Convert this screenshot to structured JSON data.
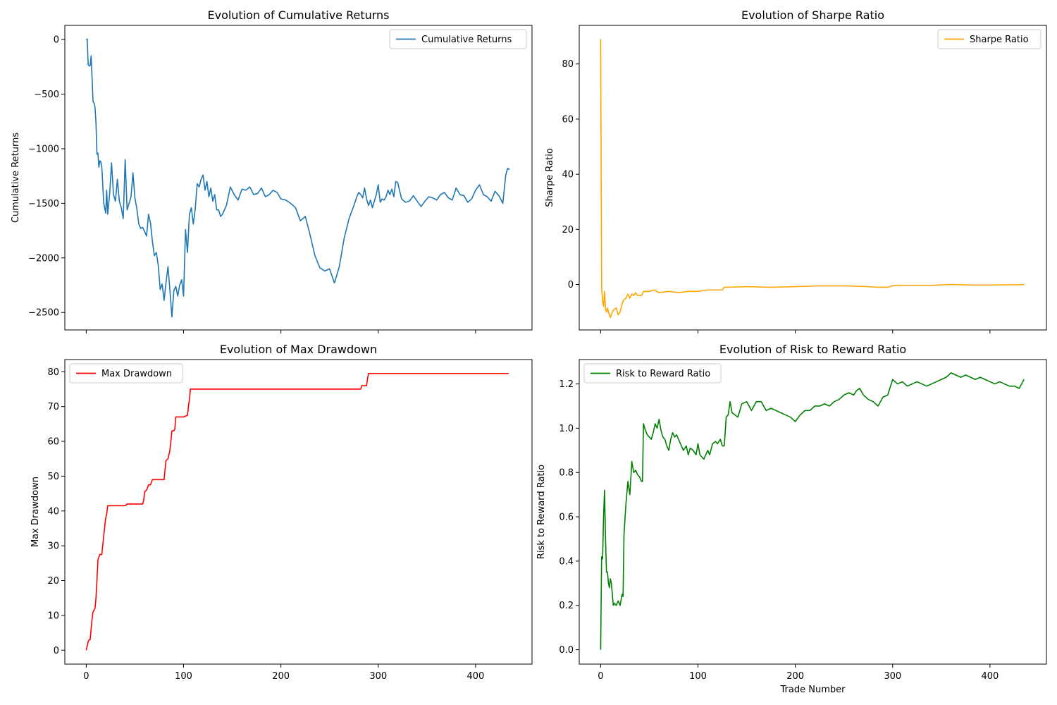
{
  "figure": {
    "background": "#ffffff"
  },
  "chart_data": [
    {
      "id": "cumulative-returns",
      "type": "line",
      "title": "Evolution of Cumulative Returns",
      "xlabel": "",
      "ylabel": "Cumulative Returns",
      "xlim": [
        -22,
        458
      ],
      "ylim": [
        -2660,
        130
      ],
      "xticks": [
        0,
        100,
        200,
        300,
        400
      ],
      "show_xtick_labels": false,
      "yticks": [
        0,
        -500,
        -1000,
        -1500,
        -2000,
        -2500
      ],
      "ytick_labels": [
        "0",
        "−500",
        "−1000",
        "−1500",
        "−2000",
        "−2500"
      ],
      "grid": false,
      "legend": "upper right",
      "series": [
        {
          "name": "Cumulative Returns",
          "color": "#1f77b4",
          "x": [
            0,
            1,
            2,
            3,
            4,
            5,
            6,
            7,
            8,
            9,
            10,
            11,
            12,
            13,
            14,
            15,
            16,
            18,
            20,
            21,
            22,
            24,
            26,
            28,
            30,
            32,
            34,
            36,
            38,
            40,
            42,
            44,
            46,
            48,
            50,
            52,
            54,
            56,
            58,
            60,
            62,
            64,
            66,
            68,
            70,
            72,
            74,
            76,
            78,
            80,
            82,
            84,
            86,
            88,
            90,
            92,
            94,
            96,
            98,
            100,
            102,
            104,
            106,
            108,
            110,
            112,
            114,
            116,
            118,
            120,
            122,
            124,
            126,
            128,
            130,
            132,
            134,
            136,
            138,
            140,
            144,
            148,
            152,
            156,
            160,
            164,
            168,
            172,
            176,
            180,
            184,
            188,
            192,
            196,
            200,
            205,
            210,
            215,
            220,
            225,
            230,
            235,
            240,
            245,
            250,
            255,
            260,
            265,
            270,
            275,
            278,
            280,
            282,
            284,
            286,
            288,
            290,
            292,
            294,
            296,
            298,
            300,
            302,
            304,
            306,
            308,
            310,
            312,
            314,
            316,
            318,
            320,
            324,
            328,
            332,
            336,
            340,
            344,
            348,
            352,
            356,
            360,
            364,
            368,
            372,
            376,
            380,
            384,
            388,
            392,
            396,
            400,
            404,
            408,
            412,
            416,
            420,
            424,
            428,
            431,
            433,
            435
          ],
          "y": [
            0,
            5,
            -230,
            -240,
            -240,
            -150,
            -350,
            -570,
            -580,
            -620,
            -760,
            -1050,
            -1040,
            -1170,
            -1110,
            -1120,
            -1170,
            -1500,
            -1590,
            -1380,
            -1600,
            -1420,
            -1130,
            -1420,
            -1480,
            -1280,
            -1480,
            -1540,
            -1640,
            -1100,
            -1560,
            -1500,
            -1440,
            -1220,
            -1450,
            -1550,
            -1690,
            -1730,
            -1720,
            -1760,
            -1800,
            -1600,
            -1680,
            -1850,
            -1980,
            -1950,
            -2070,
            -2290,
            -2240,
            -2390,
            -2220,
            -2080,
            -2300,
            -2540,
            -2300,
            -2260,
            -2350,
            -2250,
            -2200,
            -2350,
            -1740,
            -1950,
            -1600,
            -1540,
            -1690,
            -1550,
            -1320,
            -1350,
            -1280,
            -1240,
            -1380,
            -1300,
            -1440,
            -1360,
            -1480,
            -1420,
            -1560,
            -1560,
            -1620,
            -1600,
            -1520,
            -1350,
            -1420,
            -1470,
            -1370,
            -1380,
            -1350,
            -1420,
            -1410,
            -1360,
            -1440,
            -1420,
            -1380,
            -1400,
            -1460,
            -1470,
            -1500,
            -1540,
            -1660,
            -1620,
            -1790,
            -1980,
            -2090,
            -2120,
            -2100,
            -2230,
            -2080,
            -1820,
            -1640,
            -1520,
            -1440,
            -1400,
            -1420,
            -1450,
            -1360,
            -1460,
            -1520,
            -1470,
            -1540,
            -1480,
            -1420,
            -1330,
            -1490,
            -1460,
            -1470,
            -1440,
            -1380,
            -1420,
            -1370,
            -1440,
            -1300,
            -1310,
            -1460,
            -1490,
            -1480,
            -1430,
            -1480,
            -1530,
            -1480,
            -1440,
            -1450,
            -1470,
            -1420,
            -1400,
            -1450,
            -1470,
            -1360,
            -1420,
            -1430,
            -1490,
            -1460,
            -1380,
            -1330,
            -1420,
            -1440,
            -1480,
            -1390,
            -1430,
            -1500,
            -1240,
            -1180,
            -1190
          ]
        }
      ]
    },
    {
      "id": "sharpe-ratio",
      "type": "line",
      "title": "Evolution of Sharpe Ratio",
      "xlabel": "",
      "ylabel": "Sharpe Ratio",
      "xlim": [
        -22,
        458
      ],
      "ylim": [
        -16.5,
        94
      ],
      "xticks": [
        0,
        100,
        200,
        300,
        400
      ],
      "show_xtick_labels": false,
      "yticks": [
        0,
        20,
        40,
        60,
        80
      ],
      "ytick_labels": [
        "0",
        "20",
        "40",
        "60",
        "80"
      ],
      "grid": false,
      "legend": "upper right",
      "series": [
        {
          "name": "Sharpe Ratio",
          "color": "#ffa500",
          "x": [
            0,
            1,
            2,
            3,
            4,
            5,
            6,
            7,
            8,
            10,
            12,
            14,
            16,
            18,
            20,
            22,
            24,
            26,
            28,
            30,
            32,
            34,
            36,
            38,
            40,
            42,
            44,
            46,
            50,
            55,
            60,
            70,
            80,
            90,
            100,
            110,
            120,
            125,
            127,
            130,
            150,
            175,
            200,
            225,
            250,
            275,
            285,
            295,
            300,
            305,
            320,
            340,
            360,
            380,
            400,
            420,
            430,
            435
          ],
          "y": [
            89,
            -1,
            -6,
            -8,
            -2.5,
            -9,
            -10,
            -8.5,
            -10,
            -12,
            -10,
            -9,
            -8.5,
            -11,
            -10,
            -7,
            -5.5,
            -5,
            -3.5,
            -5,
            -3.5,
            -4,
            -3,
            -4,
            -4,
            -4,
            -2.5,
            -2.5,
            -2.5,
            -2,
            -3,
            -2.5,
            -3,
            -2.5,
            -2.5,
            -2,
            -2,
            -2,
            -1,
            -1,
            -0.8,
            -1,
            -0.8,
            -0.5,
            -0.5,
            -0.8,
            -1,
            -1,
            -0.5,
            -0.3,
            -0.3,
            -0.3,
            0,
            -0.2,
            -0.2,
            -0.1,
            -0.1,
            0
          ]
        }
      ]
    },
    {
      "id": "max-drawdown",
      "type": "line",
      "title": "Evolution of Max Drawdown",
      "xlabel": "",
      "ylabel": "Max Drawdown",
      "xlim": [
        -22,
        458
      ],
      "ylim": [
        -4,
        83.5
      ],
      "xticks": [
        0,
        100,
        200,
        300,
        400
      ],
      "show_xtick_labels": true,
      "xtick_labels": [
        "0",
        "100",
        "200",
        "300",
        "400"
      ],
      "yticks": [
        0,
        10,
        20,
        30,
        40,
        50,
        60,
        70,
        80
      ],
      "ytick_labels": [
        "0",
        "10",
        "20",
        "30",
        "40",
        "50",
        "60",
        "70",
        "80"
      ],
      "grid": false,
      "legend": "upper left",
      "series": [
        {
          "name": "Max Drawdown",
          "color": "#ff0000",
          "x": [
            0,
            2,
            3,
            4,
            6,
            7,
            8,
            9,
            10,
            11,
            12,
            14,
            16,
            18,
            20,
            21,
            22,
            23,
            40,
            42,
            58,
            59,
            60,
            62,
            64,
            66,
            68,
            80,
            81,
            82,
            84,
            86,
            88,
            90,
            91,
            92,
            98,
            100,
            104,
            105,
            106,
            107,
            282,
            283,
            288,
            289,
            290,
            434
          ],
          "y": [
            0,
            2.5,
            3,
            3,
            9,
            11,
            11.5,
            12,
            15,
            20,
            26,
            27.5,
            27.5,
            33,
            38,
            39,
            41.5,
            41.5,
            41.5,
            42,
            42,
            43,
            45.5,
            46,
            47.5,
            47.5,
            49,
            49,
            52,
            54.5,
            55,
            57.5,
            63,
            63,
            63.5,
            67,
            67,
            67,
            67.5,
            70,
            72,
            75,
            75,
            76,
            76,
            78,
            79.5,
            79.5
          ]
        }
      ]
    },
    {
      "id": "risk-to-reward-ratio",
      "type": "line",
      "title": "Evolution of Risk to Reward Ratio",
      "xlabel": "Trade Number",
      "ylabel": "Risk to Reward Ratio",
      "xlim": [
        -22,
        458
      ],
      "ylim": [
        -0.065,
        1.31
      ],
      "xticks": [
        0,
        100,
        200,
        300,
        400
      ],
      "show_xtick_labels": true,
      "xtick_labels": [
        "0",
        "100",
        "200",
        "300",
        "400"
      ],
      "yticks": [
        0.0,
        0.2,
        0.4,
        0.6,
        0.8,
        1.0,
        1.2
      ],
      "ytick_labels": [
        "0.0",
        "0.2",
        "0.4",
        "0.6",
        "0.8",
        "1.0",
        "1.2"
      ],
      "grid": false,
      "legend": "upper left",
      "series": [
        {
          "name": "Risk to Reward Ratio",
          "color": "#008000",
          "x": [
            0,
            1,
            2,
            3,
            4,
            5,
            6,
            7,
            8,
            9,
            10,
            11,
            12,
            13,
            14,
            16,
            18,
            20,
            22,
            23,
            24,
            26,
            28,
            30,
            32,
            34,
            36,
            38,
            40,
            42,
            43,
            44,
            46,
            48,
            50,
            52,
            54,
            56,
            58,
            60,
            62,
            64,
            66,
            68,
            70,
            72,
            74,
            76,
            78,
            80,
            82,
            85,
            88,
            90,
            92,
            95,
            98,
            100,
            102,
            104,
            106,
            108,
            110,
            112,
            115,
            118,
            120,
            123,
            125,
            127,
            129,
            131,
            133,
            135,
            138,
            141,
            145,
            150,
            155,
            160,
            165,
            170,
            175,
            180,
            185,
            190,
            195,
            200,
            205,
            210,
            215,
            220,
            225,
            230,
            235,
            240,
            245,
            250,
            255,
            260,
            263,
            266,
            270,
            275,
            280,
            285,
            290,
            295,
            300,
            305,
            310,
            315,
            320,
            325,
            330,
            335,
            340,
            345,
            350,
            355,
            360,
            365,
            370,
            375,
            380,
            385,
            390,
            395,
            400,
            405,
            410,
            415,
            420,
            425,
            430,
            435
          ],
          "y": [
            0.0,
            0.42,
            0.41,
            0.6,
            0.72,
            0.5,
            0.35,
            0.35,
            0.3,
            0.28,
            0.32,
            0.3,
            0.25,
            0.2,
            0.21,
            0.2,
            0.22,
            0.2,
            0.25,
            0.24,
            0.52,
            0.66,
            0.76,
            0.7,
            0.85,
            0.8,
            0.81,
            0.79,
            0.78,
            0.76,
            0.76,
            1.02,
            0.99,
            0.97,
            0.96,
            0.95,
            0.98,
            1.02,
            1.0,
            1.04,
            0.99,
            0.96,
            0.95,
            0.92,
            0.9,
            0.95,
            0.98,
            0.96,
            0.97,
            0.95,
            0.93,
            0.9,
            0.92,
            0.88,
            0.91,
            0.9,
            0.88,
            0.93,
            0.88,
            0.87,
            0.86,
            0.88,
            0.9,
            0.88,
            0.93,
            0.94,
            0.93,
            0.95,
            0.92,
            0.92,
            1.05,
            1.06,
            1.12,
            1.07,
            1.06,
            1.05,
            1.11,
            1.12,
            1.08,
            1.12,
            1.12,
            1.08,
            1.09,
            1.08,
            1.07,
            1.06,
            1.05,
            1.03,
            1.06,
            1.08,
            1.08,
            1.1,
            1.1,
            1.11,
            1.1,
            1.12,
            1.13,
            1.15,
            1.16,
            1.15,
            1.17,
            1.18,
            1.15,
            1.13,
            1.12,
            1.1,
            1.14,
            1.15,
            1.22,
            1.2,
            1.21,
            1.19,
            1.2,
            1.21,
            1.2,
            1.19,
            1.2,
            1.21,
            1.22,
            1.23,
            1.25,
            1.24,
            1.23,
            1.24,
            1.23,
            1.22,
            1.23,
            1.22,
            1.21,
            1.2,
            1.21,
            1.2,
            1.19,
            1.19,
            1.18,
            1.22
          ]
        }
      ]
    }
  ]
}
